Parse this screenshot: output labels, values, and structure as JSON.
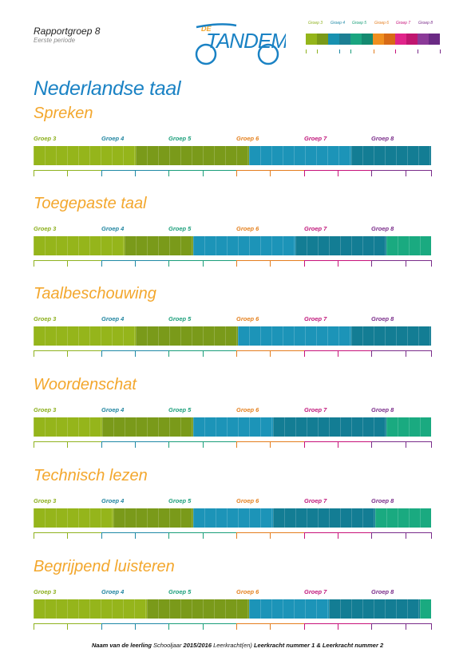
{
  "header": {
    "title": "Rapportgroep 8",
    "subtitle": "Eerste periode"
  },
  "logo": {
    "prefix": "DE",
    "name": "TANDEM"
  },
  "legend": [
    {
      "label": "Groep 3",
      "color": "#8fb21f"
    },
    {
      "label": "Groep 4",
      "color": "#1f89a6"
    },
    {
      "label": "Groep 5",
      "color": "#1aa07a"
    },
    {
      "label": "Groep 6",
      "color": "#e47d1e"
    },
    {
      "label": "Groep 7",
      "color": "#c7127a"
    },
    {
      "label": "Groep 8",
      "color": "#7a2c8a"
    }
  ],
  "legend_swatches": [
    "#94b51a",
    "#7a9a18",
    "#1891b0",
    "#1c7f93",
    "#1aa580",
    "#148a70",
    "#ef8f1f",
    "#d76a16",
    "#e0248a",
    "#c0166f",
    "#8b3a98",
    "#6a2a84"
  ],
  "page_title": "Nederlandse taal",
  "group_labels": [
    "Groep 3",
    "Groep 4",
    "Groep 5",
    "Groep 6",
    "Groep 7",
    "Groep 8"
  ],
  "group_label_colors": [
    "#8aae1a",
    "#1f84a0",
    "#1a9e7a",
    "#e4801e",
    "#c0167a",
    "#7a2c8a"
  ],
  "subjects": [
    {
      "title": "Spreken",
      "fill_pct": 100
    },
    {
      "title": "Toegepaste taal",
      "fill_pct": 100
    },
    {
      "title": "Taalbeschouwing",
      "fill_pct": 100
    },
    {
      "title": "Woordenschat",
      "fill_pct": 100
    },
    {
      "title": "Technisch lezen",
      "fill_pct": 100
    },
    {
      "title": "Begrijpend luisteren",
      "fill_pct": 100
    }
  ],
  "footer": {
    "name": "Naam van de leerling",
    "schoolyear_label": "Schooljaar",
    "schoolyear": "2015/2016",
    "teachers_label": "Leerkracht(en)",
    "teachers": "Leerkracht nummer 1 & Leerkracht nummer 2"
  }
}
